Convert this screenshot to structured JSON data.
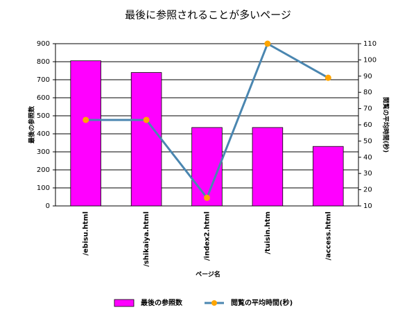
{
  "chart_data": {
    "type": "bar",
    "title": "最後に参照されることが多いページ",
    "x_label": "ページ名",
    "y_label": "最後の参照数",
    "y2_label": "閲覧の平均時間(秒)",
    "categories": [
      "/ebisu.html",
      "/shikaiya.html",
      "/index2.html",
      "/tuisin.htm",
      "/access.html"
    ],
    "series": [
      {
        "name": "最後の参照数",
        "type": "bar",
        "color": "#ff00ff",
        "values": [
          805,
          740,
          435,
          435,
          330
        ]
      },
      {
        "name": "閲覧の平均時間(秒)",
        "type": "line",
        "axis": "y2",
        "color": "#4a86b0",
        "marker_color": "#ffa500",
        "values": [
          63,
          63,
          15,
          110,
          89
        ]
      }
    ],
    "ylim": [
      0,
      900
    ],
    "yticks": [
      0,
      100,
      200,
      300,
      400,
      500,
      600,
      700,
      800,
      900
    ],
    "y2lim": [
      10,
      110
    ],
    "y2ticks": [
      10,
      20,
      30,
      40,
      50,
      60,
      70,
      80,
      90,
      100,
      110
    ],
    "grid": true,
    "legend": "bottom"
  }
}
